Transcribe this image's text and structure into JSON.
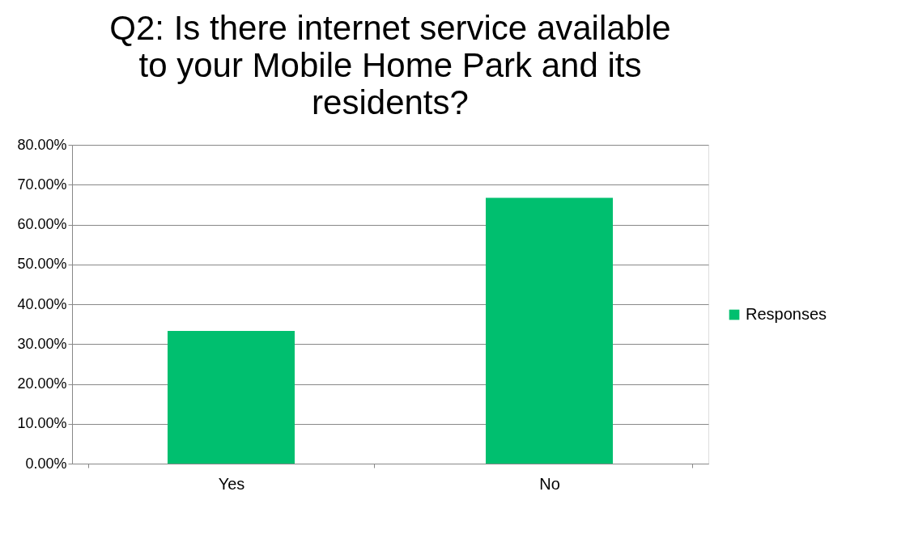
{
  "chart_data": {
    "type": "bar",
    "title": "Q2: Is there internet service available to your Mobile Home Park and its residents?",
    "categories": [
      "Yes",
      "No"
    ],
    "series": [
      {
        "name": "Responses",
        "color": "#00bf6f",
        "values": [
          33.3,
          66.7
        ]
      }
    ],
    "ylim": [
      0,
      80
    ],
    "yticks": [
      {
        "value": 0,
        "label": "0.00%"
      },
      {
        "value": 10,
        "label": "10.00%"
      },
      {
        "value": 20,
        "label": "20.00%"
      },
      {
        "value": 30,
        "label": "30.00%"
      },
      {
        "value": 40,
        "label": "40.00%"
      },
      {
        "value": 50,
        "label": "50.00%"
      },
      {
        "value": 60,
        "label": "60.00%"
      },
      {
        "value": 70,
        "label": "70.00%"
      },
      {
        "value": 80,
        "label": "80.00%"
      }
    ],
    "grid": "y",
    "legend": "right"
  }
}
